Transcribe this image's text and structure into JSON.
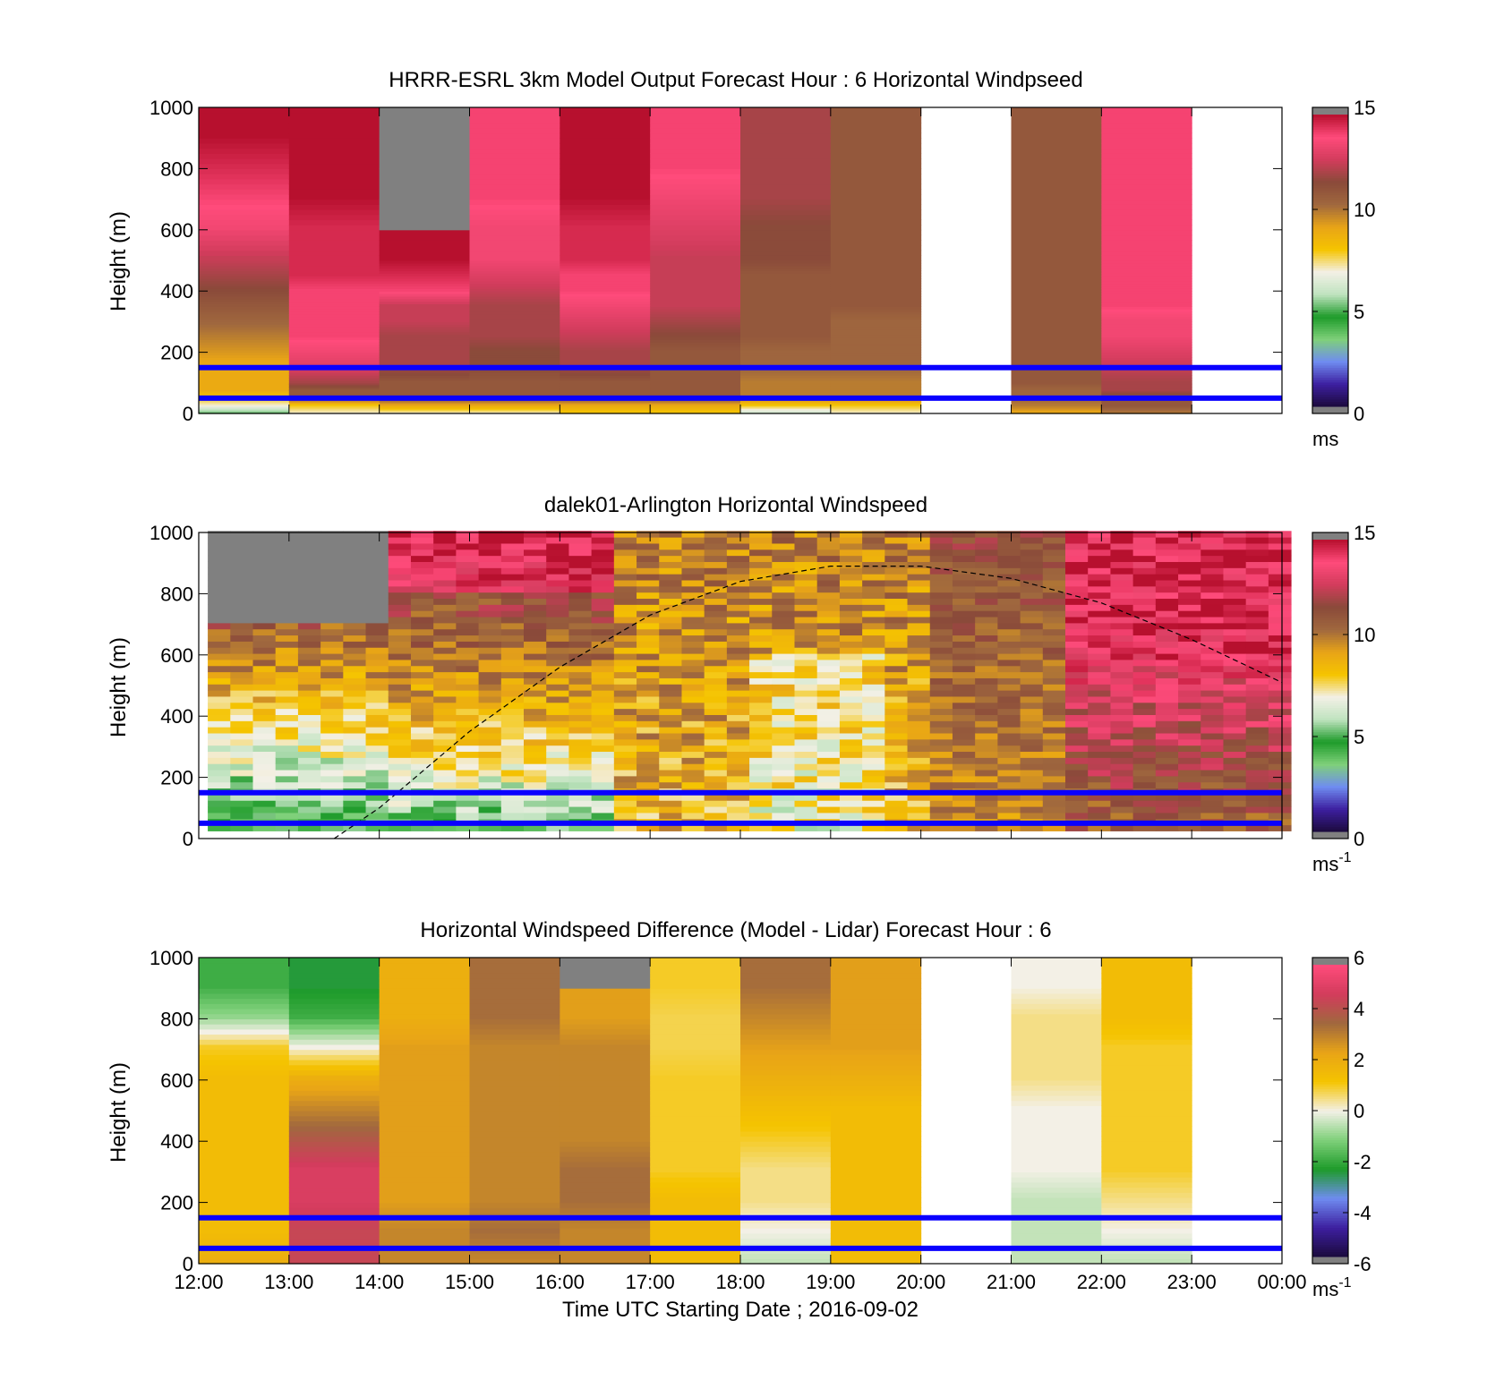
{
  "figure": {
    "xlabel": "Time UTC  Starting Date ; 2016-09-02",
    "x_ticks": [
      "12:00",
      "13:00",
      "14:00",
      "15:00",
      "16:00",
      "17:00",
      "18:00",
      "19:00",
      "20:00",
      "21:00",
      "22:00",
      "23:00",
      "00:00"
    ]
  },
  "colors": {
    "overlay_line": "#0a00ff",
    "missing": "#808080",
    "palette_speed": [
      "#1b0a3c",
      "#3d1fa0",
      "#6f8cf0",
      "#7fd07a",
      "#1e9b2a",
      "#bfe3bf",
      "#f3f0e6",
      "#f5c400",
      "#e8a417",
      "#a0683e",
      "#8a4a3a",
      "#d23c5c",
      "#ff4b7b",
      "#b7102e"
    ],
    "palette_diff": [
      "#1b0a3c",
      "#3d1fa0",
      "#6f8cf0",
      "#1e9b2a",
      "#7fd07a",
      "#f3f0e6",
      "#f5c400",
      "#e8a417",
      "#a0683e",
      "#d23c5c",
      "#ff4b7b"
    ]
  },
  "chart_data": [
    {
      "type": "heatmap",
      "title": "HRRR-ESRL 3km Model Output   Forecast Hour : 6 Horizontal Windpseed",
      "ylabel": "Height (m)",
      "ylim": [
        0,
        1000
      ],
      "y_ticks": [
        "0",
        "200",
        "400",
        "600",
        "800",
        "1000"
      ],
      "colorbar": {
        "min": 0,
        "max": 15,
        "ticks": [
          "0",
          "5",
          "10",
          "15"
        ],
        "unit": "ms",
        "unit_sup": ""
      },
      "overlay_lines_m": [
        50,
        150
      ],
      "time_bins_utc": [
        "12:00",
        "13:00",
        "14:00",
        "15:00",
        "16:00",
        "17:00",
        "18:00",
        "19:00",
        "20:00",
        "21:00",
        "22:00",
        "23:00"
      ],
      "height_bins_m": [
        0,
        25,
        50,
        75,
        100,
        150,
        200,
        250,
        300,
        350,
        400,
        450,
        500,
        600,
        700,
        800,
        900,
        1000
      ],
      "values_ms": [
        [
          5,
          7,
          8,
          9,
          9,
          9,
          9.5,
          10,
          10.5,
          11,
          11.5,
          12,
          12.5,
          13.5,
          14,
          14.5,
          15
        ],
        [
          7,
          8,
          11,
          11,
          12,
          13,
          13.5,
          14,
          14,
          14,
          14,
          14.5,
          14.5,
          14.5,
          15,
          15,
          15
        ],
        [
          7,
          9,
          11,
          11,
          11,
          12,
          12,
          12,
          12.5,
          12.5,
          14,
          14.5,
          15,
          null,
          null,
          null,
          null
        ],
        [
          7,
          9,
          11,
          11,
          11,
          11.5,
          11.5,
          12,
          12,
          12,
          12.5,
          13,
          13.5,
          13.5,
          14,
          14,
          14
        ],
        [
          8,
          9,
          11,
          11,
          11,
          12,
          12,
          12.5,
          13,
          13.5,
          14,
          14,
          14.5,
          14.5,
          15,
          15,
          15
        ],
        [
          8,
          9,
          11,
          11,
          11,
          11,
          11,
          11.5,
          12,
          12.5,
          12.5,
          12.5,
          12.5,
          13,
          13.5,
          14,
          14
        ],
        [
          6,
          8,
          10,
          10,
          10,
          10.5,
          10.5,
          11,
          11,
          11,
          11,
          11,
          11.5,
          11.5,
          12,
          12,
          12
        ],
        [
          7,
          8,
          10,
          10,
          10,
          10.5,
          10.5,
          10.5,
          10.5,
          11,
          11,
          11,
          11,
          11,
          11,
          11,
          11
        ],
        [
          null,
          null,
          null,
          null,
          null,
          null,
          null,
          null,
          null,
          null,
          null,
          null,
          null,
          null,
          null,
          null,
          null
        ],
        [
          9,
          10,
          10.5,
          10.5,
          11,
          11,
          11,
          11,
          11,
          11,
          11,
          11,
          11,
          11,
          11,
          11,
          11
        ],
        [
          10,
          11,
          11,
          12,
          12,
          12.5,
          13,
          13.5,
          13.5,
          14,
          14,
          14,
          14,
          14,
          14,
          14,
          14
        ],
        [
          null,
          null,
          null,
          null,
          null,
          null,
          null,
          null,
          null,
          null,
          null,
          null,
          null,
          null,
          null,
          null,
          null
        ]
      ]
    },
    {
      "type": "heatmap",
      "title": "dalek01-Arlington  Horizontal Windspeed",
      "ylabel": "Height (m)",
      "ylim": [
        0,
        1000
      ],
      "y_ticks": [
        "0",
        "200",
        "400",
        "600",
        "800",
        "1000"
      ],
      "colorbar": {
        "min": 0,
        "max": 15,
        "ticks": [
          "0",
          "5",
          "10",
          "15"
        ],
        "unit": "ms",
        "unit_sup": "-1"
      },
      "overlay_lines_m": [
        50,
        150
      ],
      "boundary_layer_curve": {
        "style": "dashed",
        "hours_utc": [
          13.5,
          14,
          15,
          16,
          17,
          18,
          19,
          20,
          21,
          22,
          23,
          24
        ],
        "height_m": [
          0,
          100,
          350,
          560,
          730,
          840,
          890,
          890,
          850,
          770,
          650,
          510
        ]
      },
      "profile_interval_minutes": 15,
      "height_range_m": [
        25,
        1000
      ],
      "structure": {
        "missing_region_near_top_12:00_14:00": true,
        "low_level_minimum_12:00_16:30": [
          2,
          6
        ],
        "maxima_above_500m_after_21:30": [
          13,
          15
        ]
      }
    },
    {
      "type": "heatmap",
      "title": "Horizontal Windspeed Difference (Model - Lidar) Forecast Hour : 6",
      "ylabel": "Height (m)",
      "ylim": [
        0,
        1000
      ],
      "y_ticks": [
        "0",
        "200",
        "400",
        "600",
        "800",
        "1000"
      ],
      "colorbar": {
        "min": -6,
        "max": 6,
        "ticks": [
          "-6",
          "-4",
          "-2",
          "0",
          "2",
          "4",
          "6"
        ],
        "unit": "ms",
        "unit_sup": "-1"
      },
      "overlay_lines_m": [
        50,
        150
      ],
      "time_bins_utc": [
        "12:00",
        "13:00",
        "14:00",
        "15:00",
        "16:00",
        "17:00",
        "18:00",
        "19:00",
        "20:00",
        "21:00",
        "22:00",
        "23:00"
      ],
      "height_bins_m": [
        0,
        100,
        200,
        300,
        400,
        500,
        600,
        700,
        800,
        900,
        1000
      ],
      "values_ms": [
        [
          2,
          1.5,
          1.5,
          1.5,
          1.5,
          1.5,
          1.5,
          1,
          -1,
          -2
        ],
        [
          4.5,
          4.5,
          5,
          5,
          4,
          3,
          2,
          0,
          -2,
          -2.5
        ],
        [
          3,
          3,
          2.5,
          2.5,
          2.5,
          2.5,
          2.5,
          2.5,
          2,
          2
        ],
        [
          3,
          3.5,
          3,
          3,
          3,
          3,
          3,
          3,
          3.5,
          3.5
        ],
        [
          3,
          3,
          3.5,
          3.5,
          3,
          3,
          3,
          3,
          2.5,
          null
        ],
        [
          1.5,
          1.5,
          1.5,
          1,
          1,
          1,
          1,
          0.8,
          0.8,
          1
        ],
        [
          -0.5,
          0,
          0.5,
          0.5,
          1,
          1.5,
          2,
          2.5,
          3,
          3.5
        ],
        [
          1.5,
          1.5,
          1.5,
          1.5,
          1.5,
          1.5,
          2,
          2.5,
          2.5,
          2.5
        ],
        [
          null,
          null,
          null,
          null,
          null,
          null,
          null,
          null,
          null,
          null
        ],
        [
          -0.5,
          -0.5,
          -0.5,
          0,
          0,
          0,
          0.5,
          0.5,
          0.5,
          0
        ],
        [
          -0.5,
          0,
          0.5,
          1,
          1,
          1,
          1,
          1,
          1.5,
          1.5
        ],
        [
          null,
          null,
          null,
          null,
          null,
          null,
          null,
          null,
          null,
          null
        ]
      ]
    }
  ]
}
